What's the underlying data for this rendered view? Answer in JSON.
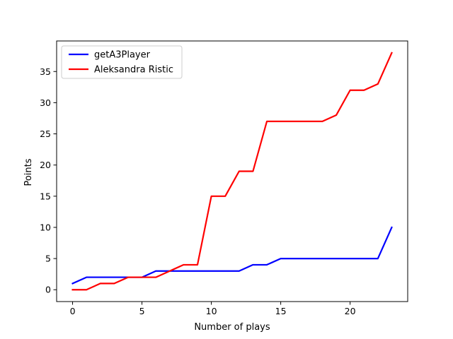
{
  "chart_data": {
    "type": "line",
    "title": "",
    "xlabel": "Number of plays",
    "ylabel": "Points",
    "xlim": [
      -1.15,
      24.15
    ],
    "ylim": [
      -1.9,
      39.9
    ],
    "xticks": [
      0,
      5,
      10,
      15,
      20
    ],
    "yticks": [
      0,
      5,
      10,
      15,
      20,
      25,
      30,
      35
    ],
    "grid": false,
    "legend_position": "top-left",
    "x": [
      0,
      1,
      2,
      3,
      4,
      5,
      6,
      7,
      8,
      9,
      10,
      11,
      12,
      13,
      14,
      15,
      16,
      17,
      18,
      19,
      20,
      21,
      22,
      23
    ],
    "series": [
      {
        "name": "getA3Player",
        "color": "#0000ff",
        "values": [
          1,
          2,
          2,
          2,
          2,
          2,
          3,
          3,
          3,
          3,
          3,
          3,
          3,
          4,
          4,
          5,
          5,
          5,
          5,
          5,
          5,
          5,
          5,
          10
        ]
      },
      {
        "name": "Aleksandra Ristic",
        "color": "#ff0000",
        "values": [
          0,
          0,
          1,
          1,
          2,
          2,
          2,
          3,
          4,
          4,
          15,
          15,
          19,
          19,
          27,
          27,
          27,
          27,
          27,
          28,
          32,
          32,
          33,
          38
        ]
      }
    ]
  }
}
